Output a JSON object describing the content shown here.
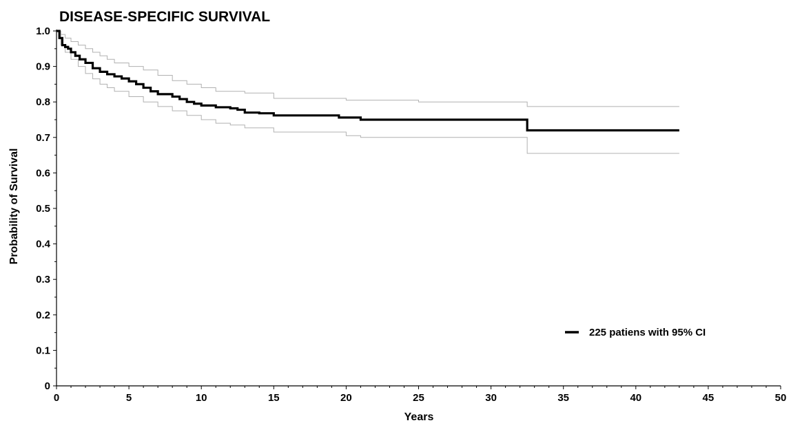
{
  "chart_data": {
    "type": "line",
    "title": "DISEASE-SPECIFIC SURVIVAL",
    "xlabel": "Years",
    "ylabel": "Probability of Survival",
    "xlim": [
      0,
      50
    ],
    "ylim": [
      0,
      1.0
    ],
    "xticks": [
      0,
      5,
      10,
      15,
      20,
      25,
      30,
      35,
      40,
      45,
      50
    ],
    "yticks": [
      0,
      0.1,
      0.2,
      0.3,
      0.4,
      0.5,
      0.6,
      0.7,
      0.8,
      0.9,
      1.0
    ],
    "xtick_labels": [
      "0",
      "5",
      "10",
      "15",
      "20",
      "25",
      "30",
      "35",
      "40",
      "45",
      "50"
    ],
    "ytick_labels": [
      "0",
      "0.1",
      "0.2",
      "0.3",
      "0.4",
      "0.5",
      "0.6",
      "0.7",
      "0.8",
      "0.9",
      "1.0"
    ],
    "grid": false,
    "legend_position": "bottom-right",
    "series": [
      {
        "name": "225 patiens with 95% CI",
        "role": "estimate",
        "color": "#000000",
        "step": true,
        "x": [
          0,
          0.2,
          0.4,
          0.6,
          0.8,
          1.0,
          1.3,
          1.6,
          2.0,
          2.5,
          3.0,
          3.5,
          4.0,
          4.5,
          5.0,
          5.5,
          6.0,
          6.5,
          7.0,
          8.0,
          8.5,
          9.0,
          9.5,
          10.0,
          11.0,
          12.0,
          12.5,
          13.0,
          14.0,
          15.0,
          17.0,
          19.5,
          21.0,
          25.0,
          32.4,
          32.5,
          43.0
        ],
        "y": [
          1.0,
          0.98,
          0.96,
          0.955,
          0.95,
          0.94,
          0.93,
          0.92,
          0.91,
          0.895,
          0.885,
          0.878,
          0.872,
          0.866,
          0.858,
          0.85,
          0.84,
          0.83,
          0.822,
          0.815,
          0.808,
          0.8,
          0.795,
          0.79,
          0.785,
          0.782,
          0.778,
          0.77,
          0.768,
          0.762,
          0.762,
          0.756,
          0.75,
          0.75,
          0.75,
          0.72,
          0.72
        ]
      },
      {
        "role": "upper-ci",
        "color": "#b0b0b0",
        "step": true,
        "x": [
          0,
          0.3,
          0.6,
          1.0,
          1.5,
          2.0,
          2.5,
          3.0,
          3.5,
          4.0,
          5.0,
          6.0,
          7.0,
          8.0,
          9.0,
          10.0,
          11.0,
          13.0,
          15.0,
          20.0,
          25.0,
          32.5,
          43.0
        ],
        "y": [
          1.0,
          0.99,
          0.98,
          0.97,
          0.96,
          0.95,
          0.94,
          0.93,
          0.92,
          0.91,
          0.9,
          0.89,
          0.875,
          0.86,
          0.85,
          0.84,
          0.83,
          0.825,
          0.81,
          0.805,
          0.8,
          0.787,
          0.787
        ]
      },
      {
        "role": "lower-ci",
        "color": "#b0b0b0",
        "step": true,
        "x": [
          0,
          0.3,
          0.6,
          1.0,
          1.5,
          2.0,
          2.5,
          3.0,
          3.5,
          4.0,
          5.0,
          6.0,
          7.0,
          8.0,
          9.0,
          10.0,
          11.0,
          12.0,
          13.0,
          15.0,
          20.0,
          21.0,
          32.5,
          43.0
        ],
        "y": [
          1.0,
          0.96,
          0.94,
          0.92,
          0.9,
          0.88,
          0.865,
          0.85,
          0.84,
          0.83,
          0.815,
          0.8,
          0.787,
          0.775,
          0.762,
          0.75,
          0.74,
          0.735,
          0.727,
          0.715,
          0.705,
          0.7,
          0.655,
          0.655
        ]
      }
    ]
  }
}
